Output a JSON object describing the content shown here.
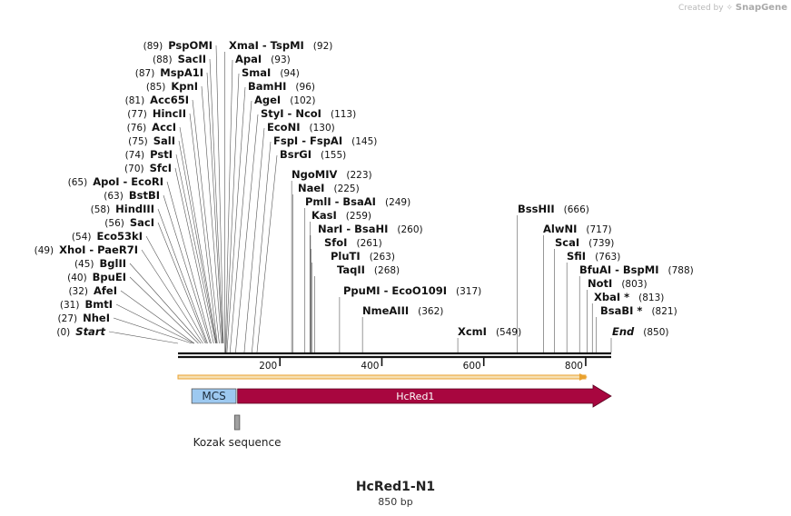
{
  "credit": {
    "prefix": "Created by",
    "brand": "SnapGene"
  },
  "sequence": {
    "name": "HcRed1-N1",
    "length_label": "850 bp",
    "length": 850
  },
  "ruler": {
    "ticks": [
      {
        "pos": 200,
        "label": "200"
      },
      {
        "pos": 400,
        "label": "400"
      },
      {
        "pos": 600,
        "label": "600"
      },
      {
        "pos": 800,
        "label": "800"
      }
    ]
  },
  "features": [
    {
      "name": "MCS",
      "start": 27,
      "end": 114,
      "type": "box",
      "color": "#9dc9f0"
    },
    {
      "name": "HcRed1",
      "start": 117,
      "end": 850,
      "type": "arrow",
      "color": "#a8063f"
    },
    {
      "name": "Kozak sequence",
      "start": 111,
      "end": 121,
      "type": "small",
      "color": "#a0a0a0"
    }
  ],
  "orf": {
    "start": 0,
    "end": 800,
    "color": "#e9a230"
  },
  "sites": [
    {
      "name": "Start",
      "pos": 0,
      "pos_label": "(0)",
      "italic": true,
      "side": "L"
    },
    {
      "name": "NheI",
      "pos": 27,
      "pos_label": "(27)",
      "side": "L"
    },
    {
      "name": "BmtI",
      "pos": 31,
      "pos_label": "(31)",
      "side": "L"
    },
    {
      "name": "AfeI",
      "pos": 32,
      "pos_label": "(32)",
      "side": "L"
    },
    {
      "name": "BpuEI",
      "pos": 40,
      "pos_label": "(40)",
      "side": "L"
    },
    {
      "name": "BglII",
      "pos": 45,
      "pos_label": "(45)",
      "side": "L"
    },
    {
      "name": "XhoI",
      "name2": "PaeR7I",
      "pos": 49,
      "pos_label": "(49)",
      "side": "L"
    },
    {
      "name": "Eco53kI",
      "pos": 54,
      "pos_label": "(54)",
      "side": "L"
    },
    {
      "name": "SacI",
      "pos": 56,
      "pos_label": "(56)",
      "side": "L"
    },
    {
      "name": "HindIII",
      "pos": 58,
      "pos_label": "(58)",
      "side": "L"
    },
    {
      "name": "BstBI",
      "pos": 63,
      "pos_label": "(63)",
      "side": "L"
    },
    {
      "name": "ApoI",
      "name2": "EcoRI",
      "pos": 65,
      "pos_label": "(65)",
      "side": "L"
    },
    {
      "name": "SfcI",
      "pos": 70,
      "pos_label": "(70)",
      "side": "L"
    },
    {
      "name": "PstI",
      "pos": 74,
      "pos_label": "(74)",
      "side": "L"
    },
    {
      "name": "SalI",
      "pos": 75,
      "pos_label": "(75)",
      "side": "L"
    },
    {
      "name": "AccI",
      "pos": 76,
      "pos_label": "(76)",
      "side": "L"
    },
    {
      "name": "HincII",
      "pos": 77,
      "pos_label": "(77)",
      "side": "L"
    },
    {
      "name": "Acc65I",
      "pos": 81,
      "pos_label": "(81)",
      "side": "L"
    },
    {
      "name": "KpnI",
      "pos": 85,
      "pos_label": "(85)",
      "side": "L"
    },
    {
      "name": "MspA1I",
      "pos": 87,
      "pos_label": "(87)",
      "side": "L"
    },
    {
      "name": "SacII",
      "pos": 88,
      "pos_label": "(88)",
      "side": "L"
    },
    {
      "name": "PspOMI",
      "pos": 89,
      "pos_label": "(89)",
      "side": "L"
    },
    {
      "name": "XmaI",
      "name2": "TspMI",
      "pos": 92,
      "pos_label": "(92)",
      "side": "R"
    },
    {
      "name": "ApaI",
      "pos": 93,
      "pos_label": "(93)",
      "side": "R"
    },
    {
      "name": "SmaI",
      "pos": 94,
      "pos_label": "(94)",
      "side": "R"
    },
    {
      "name": "BamHI",
      "pos": 96,
      "pos_label": "(96)",
      "side": "R"
    },
    {
      "name": "AgeI",
      "pos": 102,
      "pos_label": "(102)",
      "side": "R"
    },
    {
      "name": "StyI",
      "name2": "NcoI",
      "pos": 113,
      "pos_label": "(113)",
      "side": "R"
    },
    {
      "name": "EcoNI",
      "pos": 130,
      "pos_label": "(130)",
      "side": "R"
    },
    {
      "name": "FspI",
      "name2": "FspAI",
      "pos": 145,
      "pos_label": "(145)",
      "side": "R"
    },
    {
      "name": "BsrGI",
      "pos": 155,
      "pos_label": "(155)",
      "side": "R"
    },
    {
      "name": "NgoMIV",
      "pos": 223,
      "pos_label": "(223)",
      "side": "R"
    },
    {
      "name": "NaeI",
      "pos": 225,
      "pos_label": "(225)",
      "side": "R"
    },
    {
      "name": "PmlI",
      "name2": "BsaAI",
      "pos": 249,
      "pos_label": "(249)",
      "side": "R"
    },
    {
      "name": "KasI",
      "pos": 259,
      "pos_label": "(259)",
      "side": "R"
    },
    {
      "name": "NarI",
      "name2": "BsaHI",
      "pos": 260,
      "pos_label": "(260)",
      "side": "R"
    },
    {
      "name": "SfoI",
      "pos": 261,
      "pos_label": "(261)",
      "side": "R"
    },
    {
      "name": "PluTI",
      "pos": 263,
      "pos_label": "(263)",
      "side": "R"
    },
    {
      "name": "TaqII",
      "pos": 268,
      "pos_label": "(268)",
      "side": "R"
    },
    {
      "name": "PpuMI",
      "name2": "EcoO109I",
      "pos": 317,
      "pos_label": "(317)",
      "side": "R"
    },
    {
      "name": "NmeAIII",
      "pos": 362,
      "pos_label": "(362)",
      "side": "R"
    },
    {
      "name": "XcmI",
      "pos": 549,
      "pos_label": "(549)",
      "side": "R"
    },
    {
      "name": "BssHII",
      "pos": 666,
      "pos_label": "(666)",
      "side": "R"
    },
    {
      "name": "AlwNI",
      "pos": 717,
      "pos_label": "(717)",
      "side": "R"
    },
    {
      "name": "ScaI",
      "pos": 739,
      "pos_label": "(739)",
      "side": "R"
    },
    {
      "name": "SfiI",
      "pos": 763,
      "pos_label": "(763)",
      "side": "R"
    },
    {
      "name": "BfuAI",
      "name2": "BspMI",
      "pos": 788,
      "pos_label": "(788)",
      "side": "R"
    },
    {
      "name": "NotI",
      "pos": 803,
      "pos_label": "(803)",
      "side": "R"
    },
    {
      "name": "XbaI *",
      "pos": 813,
      "pos_label": "(813)",
      "side": "R"
    },
    {
      "name": "BsaBI *",
      "pos": 821,
      "pos_label": "(821)",
      "side": "R"
    },
    {
      "name": "End",
      "pos": 850,
      "pos_label": "(850)",
      "italic": true,
      "side": "R"
    }
  ]
}
